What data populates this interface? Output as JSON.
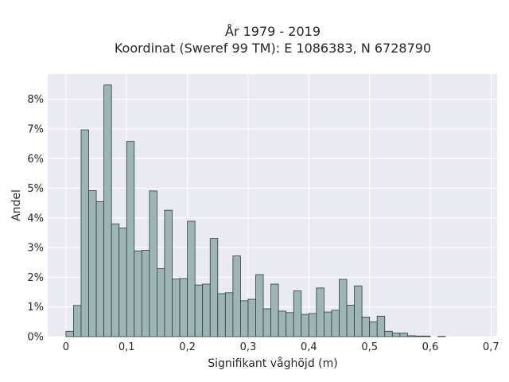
{
  "chart_data": {
    "type": "bar",
    "title_line1": "År 1979 - 2019",
    "title_line2": "Koordinat (Sweref 99 TM): E 1086383, N 6728790",
    "xlabel": "Signifikant våghöjd (m)",
    "ylabel": "Andel",
    "xlim": [
      -0.03,
      0.71
    ],
    "ylim": [
      0,
      0.0885
    ],
    "bin_width": 0.0125,
    "bin_start": 0.0,
    "xticks": [
      0,
      0.1,
      0.2,
      0.3,
      0.4,
      0.5,
      0.6,
      0.7
    ],
    "xtick_labels": [
      "0",
      "0,1",
      "0,2",
      "0,3",
      "0,4",
      "0,5",
      "0,6",
      "0,7"
    ],
    "yticks": [
      0,
      0.01,
      0.02,
      0.03,
      0.04,
      0.05,
      0.06,
      0.07,
      0.08
    ],
    "ytick_labels": [
      "0%",
      "1%",
      "2%",
      "3%",
      "4%",
      "5%",
      "6%",
      "7%",
      "8%"
    ],
    "values": [
      0.0018,
      0.0105,
      0.0697,
      0.0492,
      0.0455,
      0.0848,
      0.038,
      0.0366,
      0.0658,
      0.0289,
      0.0291,
      0.0491,
      0.0229,
      0.0426,
      0.0194,
      0.0196,
      0.0389,
      0.0174,
      0.0177,
      0.0331,
      0.0145,
      0.0148,
      0.0272,
      0.0121,
      0.0126,
      0.0209,
      0.0094,
      0.0177,
      0.0086,
      0.0081,
      0.0154,
      0.0075,
      0.0078,
      0.0164,
      0.0083,
      0.0089,
      0.0193,
      0.0106,
      0.0171,
      0.0066,
      0.005,
      0.0069,
      0.0018,
      0.0012,
      0.0012,
      0.0003,
      0.0002,
      0.0002,
      0.0,
      0.0001
    ],
    "grid": true,
    "colors": {
      "background": "#eaeaf2",
      "bar_fill": "#9db5b5",
      "bar_edge": "#2f3d3d",
      "grid": "#ffffff",
      "text": "#262626"
    }
  }
}
